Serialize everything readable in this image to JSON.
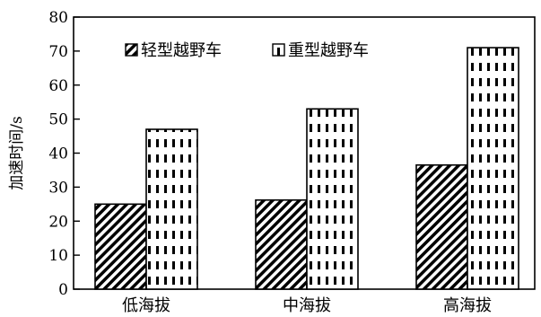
{
  "chart_data": {
    "type": "bar",
    "title": "",
    "xlabel": "",
    "ylabel": "加速时间/s",
    "categories": [
      "低海拔",
      "中海拔",
      "高海拔"
    ],
    "series": [
      {
        "name": "轻型越野车",
        "values": [
          25,
          26.2,
          36.5
        ],
        "pattern": "diagonal-hatch"
      },
      {
        "name": "重型越野车",
        "values": [
          47,
          53,
          71
        ],
        "pattern": "vertical-dashes"
      }
    ],
    "ylim": [
      0,
      80
    ],
    "yticks": [
      0,
      10,
      20,
      30,
      40,
      50,
      60,
      70,
      80
    ],
    "grid": false,
    "legend": "top-center",
    "colors": {
      "stroke": "#000000",
      "fill": "#ffffff"
    }
  }
}
